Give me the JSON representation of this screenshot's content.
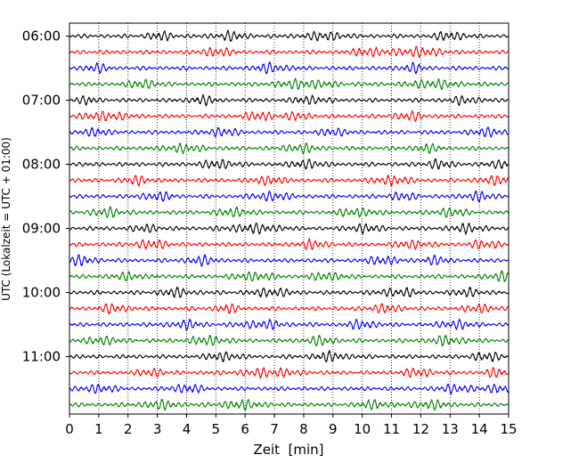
{
  "chart_data": {
    "type": "line",
    "title": "",
    "xlabel": "Zeit  [min]",
    "ylabel": "UTC (Lokalzeit = UTC + 01:00)",
    "xlim": [
      0,
      15
    ],
    "x_ticks": [
      "0",
      "1",
      "2",
      "3",
      "4",
      "5",
      "6",
      "7",
      "8",
      "9",
      "10",
      "11",
      "12",
      "13",
      "14",
      "15"
    ],
    "y_tick_labels": [
      "06:00",
      "07:00",
      "08:00",
      "09:00",
      "10:00",
      "11:00"
    ],
    "trace_start_times": [
      "06:00",
      "06:15",
      "06:30",
      "06:45",
      "07:00",
      "07:15",
      "07:30",
      "07:45",
      "08:00",
      "08:15",
      "08:30",
      "08:45",
      "09:00",
      "09:15",
      "09:30",
      "09:45",
      "10:00",
      "10:15",
      "10:30",
      "10:45",
      "11:00",
      "11:15",
      "11:30",
      "11:45"
    ],
    "trace_duration_min": 15,
    "grid": "vertical dotted lines at each minute",
    "legend": "none",
    "colors": [
      "#000000",
      "#ff0000",
      "#0000ff",
      "#008000"
    ],
    "bursts": [
      [
        [
          3.1,
          0.4
        ],
        [
          5.5,
          0.5
        ],
        [
          8.7,
          0.7
        ],
        [
          13.0,
          0.5
        ]
      ],
      [
        [
          5.0,
          0.5
        ],
        [
          10.2,
          0.5
        ],
        [
          11.9,
          0.8
        ]
      ],
      [
        [
          6.9,
          0.6
        ],
        [
          0.9,
          0.4
        ],
        [
          11.7,
          0.4
        ]
      ],
      [
        [
          2.5,
          0.5
        ],
        [
          8.0,
          0.9
        ],
        [
          12.4,
          0.8
        ]
      ],
      [
        [
          0.6,
          0.3
        ],
        [
          4.5,
          0.4
        ],
        [
          8.2,
          0.5
        ],
        [
          13.5,
          0.4
        ]
      ],
      [
        [
          1.2,
          0.8
        ],
        [
          6.5,
          0.5
        ],
        [
          7.8,
          0.4
        ],
        [
          11.6,
          0.5
        ]
      ],
      [
        [
          0.9,
          0.4
        ],
        [
          5.2,
          0.5
        ],
        [
          9.0,
          0.4
        ],
        [
          14.3,
          0.5
        ]
      ],
      [
        [
          3.9,
          0.6
        ],
        [
          7.9,
          0.5
        ],
        [
          12.2,
          0.4
        ]
      ],
      [
        [
          5.1,
          0.6
        ],
        [
          8.1,
          0.5
        ],
        [
          12.6,
          0.4
        ],
        [
          14.9,
          0.5
        ]
      ],
      [
        [
          2.3,
          0.4
        ],
        [
          6.8,
          0.5
        ],
        [
          11.0,
          0.6
        ],
        [
          14.8,
          0.7
        ]
      ],
      [
        [
          3.0,
          0.5
        ],
        [
          6.9,
          0.6
        ],
        [
          11.4,
          0.4
        ],
        [
          14.0,
          0.5
        ]
      ],
      [
        [
          1.3,
          0.5
        ],
        [
          5.6,
          0.5
        ],
        [
          9.8,
          0.6
        ],
        [
          13.0,
          0.5
        ]
      ],
      [
        [
          2.6,
          0.4
        ],
        [
          6.3,
          0.9
        ],
        [
          10.1,
          0.5
        ],
        [
          13.6,
          0.5
        ]
      ],
      [
        [
          2.8,
          0.6
        ],
        [
          8.3,
          0.5
        ],
        [
          11.7,
          0.5
        ],
        [
          14.2,
          0.5
        ]
      ],
      [
        [
          0.3,
          0.6
        ],
        [
          4.5,
          0.5
        ],
        [
          10.7,
          0.5
        ],
        [
          12.5,
          0.4
        ]
      ],
      [
        [
          2.0,
          0.4
        ],
        [
          6.3,
          0.6
        ],
        [
          8.8,
          0.5
        ],
        [
          14.8,
          0.5
        ]
      ],
      [
        [
          3.6,
          0.5
        ],
        [
          6.9,
          0.6
        ],
        [
          11.2,
          0.6
        ],
        [
          13.6,
          0.4
        ]
      ],
      [
        [
          1.5,
          0.5
        ],
        [
          5.4,
          0.4
        ],
        [
          10.8,
          0.5
        ],
        [
          14.0,
          0.5
        ]
      ],
      [
        [
          4.0,
          0.5
        ],
        [
          6.6,
          0.7
        ],
        [
          10.0,
          0.5
        ],
        [
          13.2,
          0.5
        ]
      ],
      [
        [
          1.1,
          0.5
        ],
        [
          4.7,
          0.6
        ],
        [
          8.6,
          0.5
        ],
        [
          12.9,
          0.6
        ]
      ],
      [
        [
          5.2,
          0.5
        ],
        [
          8.9,
          0.6
        ],
        [
          14.3,
          0.5
        ]
      ],
      [
        [
          2.8,
          0.4
        ],
        [
          6.8,
          0.9
        ],
        [
          11.9,
          0.5
        ],
        [
          14.6,
          0.4
        ]
      ],
      [
        [
          1.0,
          0.5
        ],
        [
          4.0,
          0.5
        ],
        [
          13.2,
          0.5
        ],
        [
          14.7,
          0.5
        ]
      ],
      [
        [
          3.1,
          0.6
        ],
        [
          5.9,
          0.7
        ],
        [
          10.4,
          0.5
        ],
        [
          12.3,
          0.6
        ]
      ]
    ]
  }
}
